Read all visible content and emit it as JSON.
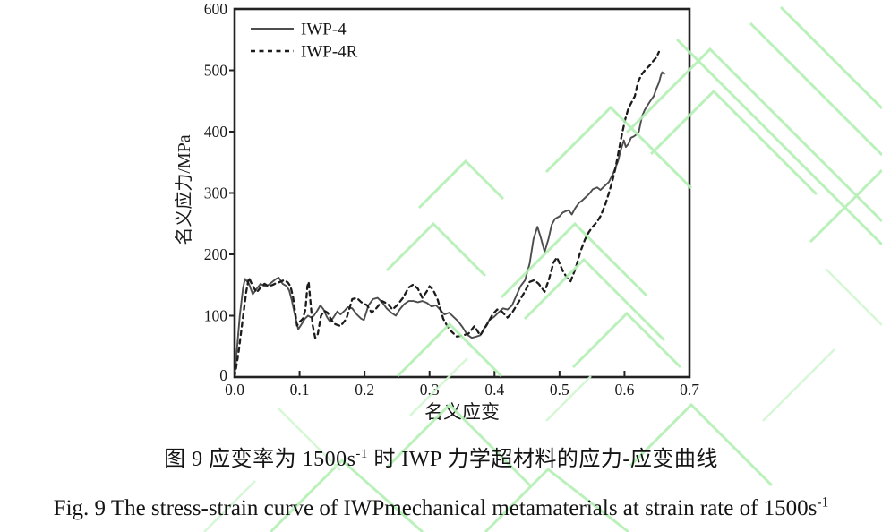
{
  "figure": {
    "caption_zh_prefix": "图 9 应变率为 1500s",
    "caption_zh_sup": "-1",
    "caption_zh_suffix": " 时 IWP 力学超材料的应力-应变曲线",
    "caption_en_prefix": "Fig. 9 The stress-strain curve of IWPmechanical metamaterials at strain rate of 1500s",
    "caption_en_sup": "-1"
  },
  "watermark": {
    "color": "#b3f0b3",
    "color_light": "#d2f7d2"
  },
  "chart_data": {
    "type": "line",
    "title": "",
    "xlabel": "名义应变",
    "ylabel": "名义应力/MPa",
    "xlim": [
      0,
      0.7
    ],
    "ylim": [
      0,
      600
    ],
    "xtick_labels": [
      "0.0",
      "0.1",
      "0.2",
      "0.3",
      "0.4",
      "0.5",
      "0.6",
      "0.7"
    ],
    "ytick_labels": [
      "0",
      "100",
      "200",
      "300",
      "400",
      "500",
      "600"
    ],
    "grid": false,
    "legend_position": "top-left",
    "axis_color": "#222222",
    "series": [
      {
        "name": "IWP-4",
        "style": "solid",
        "color": "#4d4d4d",
        "points": [
          [
            0,
            0
          ],
          [
            0.004,
            50
          ],
          [
            0.008,
            100
          ],
          [
            0.013,
            145
          ],
          [
            0.016,
            160
          ],
          [
            0.022,
            152
          ],
          [
            0.028,
            135
          ],
          [
            0.034,
            144
          ],
          [
            0.04,
            152
          ],
          [
            0.046,
            148
          ],
          [
            0.052,
            150
          ],
          [
            0.058,
            155
          ],
          [
            0.064,
            160
          ],
          [
            0.068,
            162
          ],
          [
            0.074,
            152
          ],
          [
            0.08,
            148
          ],
          [
            0.084,
            141
          ],
          [
            0.088,
            125
          ],
          [
            0.092,
            105
          ],
          [
            0.098,
            78
          ],
          [
            0.103,
            86
          ],
          [
            0.108,
            95
          ],
          [
            0.113,
            100
          ],
          [
            0.118,
            97
          ],
          [
            0.122,
            100
          ],
          [
            0.127,
            108
          ],
          [
            0.132,
            117
          ],
          [
            0.137,
            110
          ],
          [
            0.142,
            98
          ],
          [
            0.147,
            90
          ],
          [
            0.152,
            97
          ],
          [
            0.158,
            107
          ],
          [
            0.163,
            102
          ],
          [
            0.17,
            109
          ],
          [
            0.174,
            114
          ],
          [
            0.181,
            112
          ],
          [
            0.188,
            102
          ],
          [
            0.195,
            95
          ],
          [
            0.199,
            93
          ],
          [
            0.206,
            117
          ],
          [
            0.213,
            127
          ],
          [
            0.22,
            129
          ],
          [
            0.227,
            122
          ],
          [
            0.234,
            112
          ],
          [
            0.241,
            105
          ],
          [
            0.248,
            100
          ],
          [
            0.254,
            110
          ],
          [
            0.261,
            119
          ],
          [
            0.268,
            124
          ],
          [
            0.275,
            124
          ],
          [
            0.282,
            122
          ],
          [
            0.289,
            124
          ],
          [
            0.296,
            121
          ],
          [
            0.303,
            115
          ],
          [
            0.31,
            117
          ],
          [
            0.316,
            110
          ],
          [
            0.323,
            102
          ],
          [
            0.33,
            105
          ],
          [
            0.337,
            98
          ],
          [
            0.344,
            91
          ],
          [
            0.351,
            81
          ],
          [
            0.358,
            69
          ],
          [
            0.365,
            64
          ],
          [
            0.372,
            66
          ],
          [
            0.378,
            68
          ],
          [
            0.385,
            81
          ],
          [
            0.392,
            93
          ],
          [
            0.399,
            98
          ],
          [
            0.406,
            105
          ],
          [
            0.413,
            112
          ],
          [
            0.42,
            110
          ],
          [
            0.427,
            117
          ],
          [
            0.434,
            134
          ],
          [
            0.44,
            148
          ],
          [
            0.447,
            158
          ],
          [
            0.454,
            185
          ],
          [
            0.46,
            225
          ],
          [
            0.466,
            245
          ],
          [
            0.471,
            228
          ],
          [
            0.477,
            204
          ],
          [
            0.483,
            225
          ],
          [
            0.488,
            248
          ],
          [
            0.493,
            258
          ],
          [
            0.5,
            262
          ],
          [
            0.505,
            268
          ],
          [
            0.509,
            270
          ],
          [
            0.514,
            272
          ],
          [
            0.519,
            265
          ],
          [
            0.524,
            275
          ],
          [
            0.53,
            284
          ],
          [
            0.535,
            288
          ],
          [
            0.539,
            292
          ],
          [
            0.546,
            299
          ],
          [
            0.551,
            306
          ],
          [
            0.558,
            309
          ],
          [
            0.563,
            305
          ],
          [
            0.569,
            311
          ],
          [
            0.576,
            318
          ],
          [
            0.583,
            333
          ],
          [
            0.59,
            352
          ],
          [
            0.594,
            369
          ],
          [
            0.599,
            386
          ],
          [
            0.602,
            375
          ],
          [
            0.606,
            380
          ],
          [
            0.61,
            390
          ],
          [
            0.614,
            392
          ],
          [
            0.618,
            395
          ],
          [
            0.622,
            400
          ],
          [
            0.627,
            425
          ],
          [
            0.631,
            435
          ],
          [
            0.636,
            444
          ],
          [
            0.641,
            452
          ],
          [
            0.645,
            458
          ],
          [
            0.649,
            470
          ],
          [
            0.653,
            480
          ],
          [
            0.656,
            492
          ],
          [
            0.658,
            497
          ],
          [
            0.661,
            494
          ]
        ]
      },
      {
        "name": "IWP-4R",
        "style": "dashed",
        "color": "#1c1c1c",
        "points": [
          [
            0,
            0
          ],
          [
            0.006,
            40
          ],
          [
            0.012,
            90
          ],
          [
            0.018,
            140
          ],
          [
            0.022,
            162
          ],
          [
            0.028,
            148
          ],
          [
            0.034,
            138
          ],
          [
            0.04,
            146
          ],
          [
            0.046,
            152
          ],
          [
            0.052,
            148
          ],
          [
            0.058,
            150
          ],
          [
            0.064,
            153
          ],
          [
            0.07,
            155
          ],
          [
            0.076,
            158
          ],
          [
            0.082,
            154
          ],
          [
            0.086,
            148
          ],
          [
            0.09,
            130
          ],
          [
            0.094,
            100
          ],
          [
            0.096,
            84
          ],
          [
            0.1,
            90
          ],
          [
            0.105,
            95
          ],
          [
            0.109,
            110
          ],
          [
            0.112,
            148
          ],
          [
            0.114,
            155
          ],
          [
            0.117,
            120
          ],
          [
            0.12,
            85
          ],
          [
            0.124,
            64
          ],
          [
            0.128,
            70
          ],
          [
            0.133,
            100
          ],
          [
            0.138,
            108
          ],
          [
            0.143,
            105
          ],
          [
            0.148,
            95
          ],
          [
            0.153,
            87
          ],
          [
            0.158,
            85
          ],
          [
            0.163,
            83
          ],
          [
            0.172,
            95
          ],
          [
            0.181,
            127
          ],
          [
            0.188,
            129
          ],
          [
            0.195,
            122
          ],
          [
            0.204,
            117
          ],
          [
            0.211,
            105
          ],
          [
            0.218,
            112
          ],
          [
            0.227,
            124
          ],
          [
            0.236,
            119
          ],
          [
            0.243,
            110
          ],
          [
            0.25,
            117
          ],
          [
            0.259,
            129
          ],
          [
            0.268,
            146
          ],
          [
            0.275,
            151
          ],
          [
            0.282,
            144
          ],
          [
            0.289,
            129
          ],
          [
            0.296,
            140
          ],
          [
            0.3,
            148
          ],
          [
            0.305,
            143
          ],
          [
            0.312,
            128
          ],
          [
            0.321,
            95
          ],
          [
            0.33,
            78
          ],
          [
            0.342,
            66
          ],
          [
            0.352,
            68
          ],
          [
            0.36,
            71
          ],
          [
            0.369,
            83
          ],
          [
            0.378,
            68
          ],
          [
            0.388,
            85
          ],
          [
            0.397,
            102
          ],
          [
            0.404,
            110
          ],
          [
            0.411,
            107
          ],
          [
            0.42,
            97
          ],
          [
            0.427,
            105
          ],
          [
            0.434,
            117
          ],
          [
            0.441,
            129
          ],
          [
            0.447,
            140
          ],
          [
            0.454,
            155
          ],
          [
            0.461,
            158
          ],
          [
            0.468,
            152
          ],
          [
            0.477,
            139
          ],
          [
            0.484,
            160
          ],
          [
            0.491,
            187
          ],
          [
            0.496,
            195
          ],
          [
            0.505,
            173
          ],
          [
            0.512,
            161
          ],
          [
            0.517,
            156
          ],
          [
            0.525,
            178
          ],
          [
            0.532,
            204
          ],
          [
            0.539,
            224
          ],
          [
            0.545,
            236
          ],
          [
            0.551,
            245
          ],
          [
            0.557,
            252
          ],
          [
            0.563,
            262
          ],
          [
            0.57,
            280
          ],
          [
            0.576,
            300
          ],
          [
            0.581,
            318
          ],
          [
            0.586,
            340
          ],
          [
            0.591,
            368
          ],
          [
            0.596,
            395
          ],
          [
            0.601,
            420
          ],
          [
            0.606,
            438
          ],
          [
            0.611,
            448
          ],
          [
            0.616,
            458
          ],
          [
            0.621,
            482
          ],
          [
            0.627,
            494
          ],
          [
            0.633,
            502
          ],
          [
            0.639,
            508
          ],
          [
            0.644,
            515
          ],
          [
            0.649,
            521
          ],
          [
            0.653,
            530
          ]
        ]
      }
    ]
  }
}
